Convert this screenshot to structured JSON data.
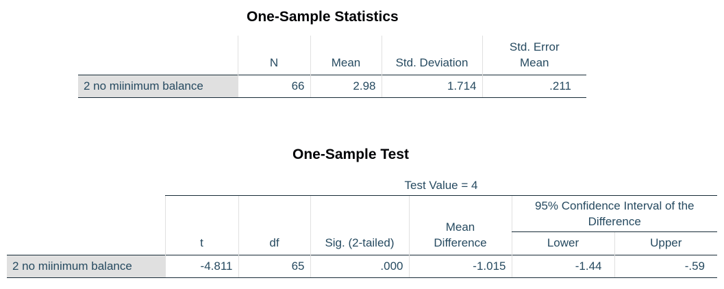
{
  "stats": {
    "title": "One-Sample Statistics",
    "headers": {
      "n": "N",
      "mean": "Mean",
      "std_dev": "Std. Deviation",
      "std_err_1": "Std. Error",
      "std_err_2": "Mean"
    },
    "row": {
      "label": "2 no miinimum balance",
      "n": "66",
      "mean": "2.98",
      "std_dev": "1.714",
      "std_err": ".211"
    }
  },
  "test": {
    "title": "One-Sample Test",
    "test_value": "Test Value = 4",
    "ci_header_1": "95% Confidence Interval of the",
    "ci_header_2": "Difference",
    "headers": {
      "t": "t",
      "df": "df",
      "sig": "Sig. (2-tailed)",
      "mean_diff_1": "Mean",
      "mean_diff_2": "Difference",
      "lower": "Lower",
      "upper": "Upper"
    },
    "row": {
      "label": "2 no miinimum balance",
      "t": "-4.811",
      "df": "65",
      "sig": ".000",
      "mean_diff": "-1.015",
      "lower": "-1.44",
      "upper": "-.59"
    }
  }
}
